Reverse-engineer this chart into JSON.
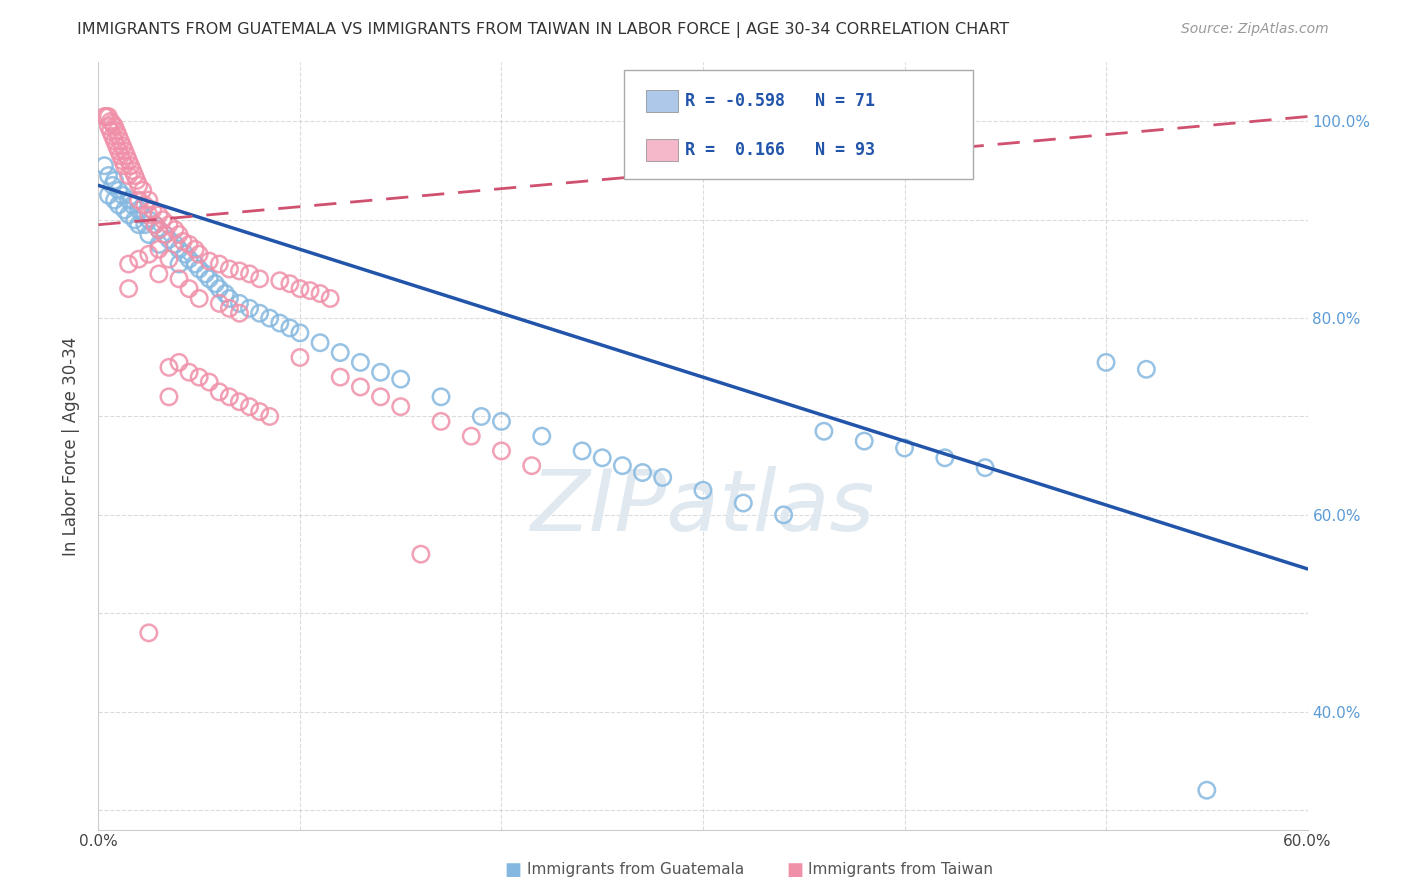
{
  "title": "IMMIGRANTS FROM GUATEMALA VS IMMIGRANTS FROM TAIWAN IN LABOR FORCE | AGE 30-34 CORRELATION CHART",
  "source": "Source: ZipAtlas.com",
  "ylabel": "In Labor Force | Age 30-34",
  "xlim": [
    0.0,
    0.6
  ],
  "ylim": [
    0.28,
    1.06
  ],
  "xticks": [
    0.0,
    0.1,
    0.2,
    0.3,
    0.4,
    0.5,
    0.6
  ],
  "xtick_labels": [
    "0.0%",
    "",
    "",
    "",
    "",
    "",
    "60.0%"
  ],
  "yticks": [
    0.3,
    0.4,
    0.5,
    0.6,
    0.7,
    0.8,
    0.9,
    1.0
  ],
  "ytick_labels": [
    "",
    "40.0%",
    "",
    "60.0%",
    "",
    "80.0%",
    "",
    "100.0%"
  ],
  "legend_entries": [
    {
      "color": "#adc8e8",
      "R": "-0.598",
      "N": "71",
      "label": "Immigrants from Guatemala"
    },
    {
      "color": "#f5b8cb",
      "R": "0.166",
      "N": "93",
      "label": "Immigrants from Taiwan"
    }
  ],
  "guatemala_color": "#85b8e0",
  "taiwan_color": "#f090a8",
  "guatemala_line_color": "#2255aa",
  "taiwan_line_color": "#d05070",
  "watermark": "ZIPatlas",
  "watermark_color": "#e0e8f0",
  "background_color": "#ffffff",
  "grid_color": "#cccccc",
  "guatemala_trend": [
    0.0,
    0.935,
    0.6,
    0.545
  ],
  "taiwan_trend": [
    0.0,
    0.895,
    0.6,
    1.005
  ],
  "guatemala_points": [
    [
      0.003,
      0.955
    ],
    [
      0.005,
      0.945
    ],
    [
      0.005,
      0.925
    ],
    [
      0.007,
      0.935
    ],
    [
      0.008,
      0.94
    ],
    [
      0.008,
      0.92
    ],
    [
      0.01,
      0.93
    ],
    [
      0.01,
      0.915
    ],
    [
      0.012,
      0.925
    ],
    [
      0.013,
      0.91
    ],
    [
      0.015,
      0.92
    ],
    [
      0.015,
      0.905
    ],
    [
      0.017,
      0.915
    ],
    [
      0.018,
      0.9
    ],
    [
      0.02,
      0.91
    ],
    [
      0.02,
      0.895
    ],
    [
      0.022,
      0.905
    ],
    [
      0.023,
      0.895
    ],
    [
      0.025,
      0.9
    ],
    [
      0.025,
      0.885
    ],
    [
      0.028,
      0.895
    ],
    [
      0.03,
      0.89
    ],
    [
      0.03,
      0.875
    ],
    [
      0.033,
      0.885
    ],
    [
      0.035,
      0.88
    ],
    [
      0.038,
      0.875
    ],
    [
      0.04,
      0.87
    ],
    [
      0.04,
      0.855
    ],
    [
      0.043,
      0.865
    ],
    [
      0.045,
      0.86
    ],
    [
      0.048,
      0.855
    ],
    [
      0.05,
      0.85
    ],
    [
      0.053,
      0.845
    ],
    [
      0.055,
      0.84
    ],
    [
      0.058,
      0.835
    ],
    [
      0.06,
      0.83
    ],
    [
      0.063,
      0.825
    ],
    [
      0.065,
      0.82
    ],
    [
      0.07,
      0.815
    ],
    [
      0.075,
      0.81
    ],
    [
      0.08,
      0.805
    ],
    [
      0.085,
      0.8
    ],
    [
      0.09,
      0.795
    ],
    [
      0.095,
      0.79
    ],
    [
      0.1,
      0.785
    ],
    [
      0.11,
      0.775
    ],
    [
      0.12,
      0.765
    ],
    [
      0.13,
      0.755
    ],
    [
      0.14,
      0.745
    ],
    [
      0.15,
      0.738
    ],
    [
      0.17,
      0.72
    ],
    [
      0.19,
      0.7
    ],
    [
      0.2,
      0.695
    ],
    [
      0.22,
      0.68
    ],
    [
      0.24,
      0.665
    ],
    [
      0.25,
      0.658
    ],
    [
      0.26,
      0.65
    ],
    [
      0.27,
      0.643
    ],
    [
      0.28,
      0.638
    ],
    [
      0.3,
      0.625
    ],
    [
      0.32,
      0.612
    ],
    [
      0.34,
      0.6
    ],
    [
      0.36,
      0.685
    ],
    [
      0.38,
      0.675
    ],
    [
      0.4,
      0.668
    ],
    [
      0.42,
      0.658
    ],
    [
      0.44,
      0.648
    ],
    [
      0.5,
      0.755
    ],
    [
      0.52,
      0.748
    ],
    [
      0.55,
      0.32
    ]
  ],
  "taiwan_points": [
    [
      0.003,
      1.005
    ],
    [
      0.004,
      1.005
    ],
    [
      0.005,
      1.005
    ],
    [
      0.005,
      0.995
    ],
    [
      0.006,
      1.0
    ],
    [
      0.006,
      0.99
    ],
    [
      0.007,
      0.998
    ],
    [
      0.007,
      0.985
    ],
    [
      0.008,
      0.995
    ],
    [
      0.008,
      0.98
    ],
    [
      0.009,
      0.99
    ],
    [
      0.009,
      0.975
    ],
    [
      0.01,
      0.985
    ],
    [
      0.01,
      0.97
    ],
    [
      0.011,
      0.98
    ],
    [
      0.011,
      0.965
    ],
    [
      0.012,
      0.975
    ],
    [
      0.012,
      0.96
    ],
    [
      0.013,
      0.97
    ],
    [
      0.013,
      0.955
    ],
    [
      0.014,
      0.965
    ],
    [
      0.015,
      0.96
    ],
    [
      0.015,
      0.945
    ],
    [
      0.016,
      0.955
    ],
    [
      0.017,
      0.95
    ],
    [
      0.018,
      0.945
    ],
    [
      0.019,
      0.94
    ],
    [
      0.02,
      0.935
    ],
    [
      0.02,
      0.92
    ],
    [
      0.022,
      0.93
    ],
    [
      0.023,
      0.915
    ],
    [
      0.025,
      0.92
    ],
    [
      0.025,
      0.905
    ],
    [
      0.027,
      0.91
    ],
    [
      0.028,
      0.895
    ],
    [
      0.03,
      0.905
    ],
    [
      0.03,
      0.89
    ],
    [
      0.032,
      0.9
    ],
    [
      0.033,
      0.885
    ],
    [
      0.035,
      0.895
    ],
    [
      0.038,
      0.89
    ],
    [
      0.04,
      0.885
    ],
    [
      0.042,
      0.878
    ],
    [
      0.045,
      0.875
    ],
    [
      0.048,
      0.87
    ],
    [
      0.05,
      0.865
    ],
    [
      0.055,
      0.858
    ],
    [
      0.06,
      0.855
    ],
    [
      0.065,
      0.85
    ],
    [
      0.07,
      0.848
    ],
    [
      0.075,
      0.845
    ],
    [
      0.08,
      0.84
    ],
    [
      0.09,
      0.838
    ],
    [
      0.095,
      0.835
    ],
    [
      0.1,
      0.83
    ],
    [
      0.105,
      0.828
    ],
    [
      0.11,
      0.825
    ],
    [
      0.115,
      0.82
    ],
    [
      0.015,
      0.855
    ],
    [
      0.015,
      0.83
    ],
    [
      0.02,
      0.86
    ],
    [
      0.025,
      0.865
    ],
    [
      0.03,
      0.87
    ],
    [
      0.03,
      0.845
    ],
    [
      0.035,
      0.86
    ],
    [
      0.04,
      0.84
    ],
    [
      0.045,
      0.83
    ],
    [
      0.05,
      0.82
    ],
    [
      0.06,
      0.815
    ],
    [
      0.065,
      0.81
    ],
    [
      0.07,
      0.805
    ],
    [
      0.1,
      0.76
    ],
    [
      0.12,
      0.74
    ],
    [
      0.13,
      0.73
    ],
    [
      0.14,
      0.72
    ],
    [
      0.15,
      0.71
    ],
    [
      0.17,
      0.695
    ],
    [
      0.185,
      0.68
    ],
    [
      0.2,
      0.665
    ],
    [
      0.215,
      0.65
    ],
    [
      0.16,
      0.56
    ],
    [
      0.025,
      0.48
    ],
    [
      0.035,
      0.75
    ],
    [
      0.035,
      0.72
    ],
    [
      0.04,
      0.755
    ],
    [
      0.045,
      0.745
    ],
    [
      0.05,
      0.74
    ],
    [
      0.055,
      0.735
    ],
    [
      0.06,
      0.725
    ],
    [
      0.065,
      0.72
    ],
    [
      0.07,
      0.715
    ],
    [
      0.075,
      0.71
    ],
    [
      0.08,
      0.705
    ],
    [
      0.085,
      0.7
    ]
  ],
  "legend_box_color": "#ffffff",
  "legend_border_color": "#aaaaaa"
}
